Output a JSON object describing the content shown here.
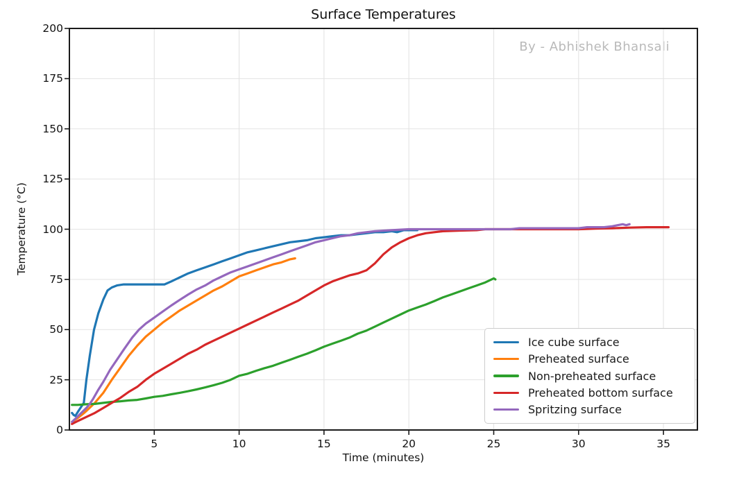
{
  "chart": {
    "title": "Surface Temperatures",
    "watermark": "By - Abhishek Bhansali",
    "xlabel": "Time (minutes)",
    "ylabel": "Temperature (°C)"
  },
  "chart_data": {
    "type": "line",
    "title": "Surface Temperatures",
    "xlabel": "Time (minutes)",
    "ylabel": "Temperature (°C)",
    "xlim": [
      0,
      37
    ],
    "ylim": [
      0,
      200
    ],
    "xticks": [
      5,
      10,
      15,
      20,
      25,
      30,
      35
    ],
    "yticks": [
      0,
      25,
      50,
      75,
      100,
      125,
      150,
      175,
      200
    ],
    "grid": true,
    "grid_color": "#e3e3e3",
    "spine_color": "#1a1a1a",
    "legend_position": "lower-right-inside",
    "annotations": [
      "By - Abhishek Bhansali"
    ],
    "series": [
      {
        "name": "Ice cube surface",
        "slug": "ice-cube-surface",
        "color": "#1f77b4",
        "points": [
          [
            0.15,
            8.5
          ],
          [
            0.25,
            7.5
          ],
          [
            0.35,
            7
          ],
          [
            0.5,
            9
          ],
          [
            0.65,
            11
          ],
          [
            0.85,
            13.5
          ],
          [
            1,
            25
          ],
          [
            1.2,
            37
          ],
          [
            1.45,
            50
          ],
          [
            1.7,
            58
          ],
          [
            2,
            65
          ],
          [
            2.25,
            69.5
          ],
          [
            2.5,
            71
          ],
          [
            2.8,
            72
          ],
          [
            3.2,
            72.5
          ],
          [
            4,
            72.5
          ],
          [
            4.5,
            72.5
          ],
          [
            5,
            72.5
          ],
          [
            5.6,
            72.5
          ],
          [
            6,
            74
          ],
          [
            6.5,
            76
          ],
          [
            7,
            78
          ],
          [
            7.5,
            79.5
          ],
          [
            8,
            81
          ],
          [
            8.5,
            82.5
          ],
          [
            9,
            84
          ],
          [
            9.5,
            85.5
          ],
          [
            10,
            87
          ],
          [
            10.5,
            88.5
          ],
          [
            11,
            89.5
          ],
          [
            11.5,
            90.5
          ],
          [
            12,
            91.5
          ],
          [
            12.5,
            92.5
          ],
          [
            13,
            93.5
          ],
          [
            13.5,
            94
          ],
          [
            14,
            94.5
          ],
          [
            14.5,
            95.5
          ],
          [
            15,
            96
          ],
          [
            15.5,
            96.5
          ],
          [
            16,
            97
          ],
          [
            16.5,
            97
          ],
          [
            17,
            97.5
          ],
          [
            17.5,
            98
          ],
          [
            18,
            98.5
          ],
          [
            18.5,
            98.5
          ],
          [
            19,
            99
          ],
          [
            19.3,
            98.5
          ],
          [
            19.7,
            99.5
          ],
          [
            20,
            99.5
          ],
          [
            20.5,
            99.5
          ]
        ]
      },
      {
        "name": "Preheated surface",
        "slug": "preheated-surface",
        "color": "#ff7f0e",
        "points": [
          [
            0.15,
            4
          ],
          [
            0.5,
            6
          ],
          [
            0.8,
            8
          ],
          [
            1,
            9.5
          ],
          [
            1.5,
            13.5
          ],
          [
            2,
            18.5
          ],
          [
            2.5,
            25
          ],
          [
            3,
            31
          ],
          [
            3.5,
            37
          ],
          [
            4,
            42
          ],
          [
            4.5,
            46.5
          ],
          [
            5,
            50
          ],
          [
            5.5,
            53.5
          ],
          [
            6,
            56.5
          ],
          [
            6.5,
            59.5
          ],
          [
            7,
            62
          ],
          [
            7.5,
            64.5
          ],
          [
            8,
            67
          ],
          [
            8.5,
            69.5
          ],
          [
            9,
            71.5
          ],
          [
            9.5,
            74
          ],
          [
            10,
            76.5
          ],
          [
            10.5,
            78
          ],
          [
            11,
            79.5
          ],
          [
            11.5,
            81
          ],
          [
            12,
            82.5
          ],
          [
            12.5,
            83.5
          ],
          [
            13,
            85
          ],
          [
            13.3,
            85.5
          ]
        ]
      },
      {
        "name": "Non-preheated surface",
        "slug": "non-preheated-surface",
        "color": "#2ca02c",
        "points": [
          [
            0.15,
            12.5
          ],
          [
            0.5,
            12.5
          ],
          [
            1,
            12.8
          ],
          [
            1.5,
            13
          ],
          [
            2,
            13.5
          ],
          [
            2.5,
            14
          ],
          [
            3,
            14.3
          ],
          [
            3.5,
            14.7
          ],
          [
            4,
            15
          ],
          [
            4.5,
            15.7
          ],
          [
            5,
            16.5
          ],
          [
            5.5,
            17
          ],
          [
            6,
            17.8
          ],
          [
            6.5,
            18.5
          ],
          [
            7,
            19.3
          ],
          [
            7.5,
            20.2
          ],
          [
            8,
            21.2
          ],
          [
            8.5,
            22.3
          ],
          [
            9,
            23.5
          ],
          [
            9.5,
            25
          ],
          [
            10,
            27
          ],
          [
            10.5,
            28
          ],
          [
            11,
            29.5
          ],
          [
            11.5,
            30.8
          ],
          [
            12,
            32
          ],
          [
            12.5,
            33.5
          ],
          [
            13,
            35
          ],
          [
            13.5,
            36.5
          ],
          [
            14,
            38
          ],
          [
            14.5,
            39.7
          ],
          [
            15,
            41.5
          ],
          [
            15.5,
            43
          ],
          [
            16,
            44.5
          ],
          [
            16.5,
            46
          ],
          [
            17,
            48
          ],
          [
            17.5,
            49.5
          ],
          [
            18,
            51.5
          ],
          [
            18.5,
            53.5
          ],
          [
            19,
            55.5
          ],
          [
            19.5,
            57.5
          ],
          [
            20,
            59.5
          ],
          [
            20.5,
            61
          ],
          [
            21,
            62.5
          ],
          [
            21.5,
            64.2
          ],
          [
            22,
            66
          ],
          [
            22.5,
            67.5
          ],
          [
            23,
            69
          ],
          [
            23.5,
            70.5
          ],
          [
            24,
            72
          ],
          [
            24.5,
            73.5
          ],
          [
            25,
            75.5
          ],
          [
            25.1,
            75
          ]
        ]
      },
      {
        "name": "Preheated bottom surface",
        "slug": "preheated-bottom-surface",
        "color": "#d62728",
        "points": [
          [
            0.15,
            3
          ],
          [
            0.5,
            4.5
          ],
          [
            1,
            6.5
          ],
          [
            1.5,
            8.5
          ],
          [
            2,
            11
          ],
          [
            2.5,
            13.5
          ],
          [
            3,
            16
          ],
          [
            3.5,
            19
          ],
          [
            4,
            21.5
          ],
          [
            4.5,
            25
          ],
          [
            5,
            28
          ],
          [
            5.5,
            30.5
          ],
          [
            6,
            33
          ],
          [
            6.5,
            35.5
          ],
          [
            7,
            38
          ],
          [
            7.5,
            40
          ],
          [
            8,
            42.5
          ],
          [
            8.5,
            44.5
          ],
          [
            9,
            46.5
          ],
          [
            9.5,
            48.5
          ],
          [
            10,
            50.5
          ],
          [
            10.5,
            52.5
          ],
          [
            11,
            54.5
          ],
          [
            11.5,
            56.5
          ],
          [
            12,
            58.5
          ],
          [
            12.5,
            60.5
          ],
          [
            13,
            62.5
          ],
          [
            13.5,
            64.5
          ],
          [
            14,
            67
          ],
          [
            14.5,
            69.5
          ],
          [
            15,
            72
          ],
          [
            15.5,
            74
          ],
          [
            16,
            75.5
          ],
          [
            16.5,
            77
          ],
          [
            17,
            78
          ],
          [
            17.5,
            79.5
          ],
          [
            18,
            83
          ],
          [
            18.5,
            87.5
          ],
          [
            19,
            91
          ],
          [
            19.5,
            93.5
          ],
          [
            20,
            95.5
          ],
          [
            20.5,
            97
          ],
          [
            21,
            98
          ],
          [
            21.5,
            98.5
          ],
          [
            22,
            99
          ],
          [
            23,
            99.3
          ],
          [
            24,
            99.5
          ],
          [
            24.5,
            100
          ],
          [
            25,
            100
          ],
          [
            26,
            100
          ],
          [
            27,
            100
          ],
          [
            28,
            100
          ],
          [
            29,
            100
          ],
          [
            30,
            100
          ],
          [
            31,
            100.3
          ],
          [
            32,
            100.5
          ],
          [
            33,
            100.8
          ],
          [
            34,
            101
          ],
          [
            35,
            101
          ],
          [
            35.3,
            101
          ]
        ]
      },
      {
        "name": "Spritzing surface",
        "slug": "spritzing-surface",
        "color": "#9467bd",
        "points": [
          [
            0.15,
            4
          ],
          [
            0.4,
            6
          ],
          [
            0.7,
            8.5
          ],
          [
            1,
            11
          ],
          [
            1.2,
            13
          ],
          [
            1.4,
            15.5
          ],
          [
            1.7,
            20
          ],
          [
            2,
            24
          ],
          [
            2.4,
            30
          ],
          [
            2.8,
            35
          ],
          [
            3.2,
            40
          ],
          [
            3.7,
            46
          ],
          [
            4.1,
            50
          ],
          [
            4.5,
            53
          ],
          [
            5,
            56
          ],
          [
            5.5,
            59
          ],
          [
            6,
            62
          ],
          [
            6.5,
            64.8
          ],
          [
            7,
            67.5
          ],
          [
            7.5,
            70
          ],
          [
            8,
            72
          ],
          [
            8.5,
            74.5
          ],
          [
            9,
            76.5
          ],
          [
            9.5,
            78.5
          ],
          [
            10,
            80
          ],
          [
            10.5,
            81.5
          ],
          [
            11,
            83
          ],
          [
            11.5,
            84.5
          ],
          [
            12,
            86
          ],
          [
            12.5,
            87.5
          ],
          [
            13,
            89
          ],
          [
            13.5,
            90.5
          ],
          [
            14,
            92
          ],
          [
            14.5,
            93.5
          ],
          [
            15,
            94.5
          ],
          [
            15.5,
            95.5
          ],
          [
            16,
            96.5
          ],
          [
            16.5,
            97
          ],
          [
            17,
            98
          ],
          [
            17.5,
            98.5
          ],
          [
            18,
            99
          ],
          [
            19,
            99.5
          ],
          [
            20,
            100
          ],
          [
            21,
            100
          ],
          [
            22,
            100
          ],
          [
            23,
            100
          ],
          [
            24,
            100
          ],
          [
            25,
            100
          ],
          [
            26,
            100
          ],
          [
            26.5,
            100.5
          ],
          [
            28,
            100.5
          ],
          [
            29,
            100.5
          ],
          [
            30,
            100.5
          ],
          [
            30.5,
            101
          ],
          [
            31.5,
            101
          ],
          [
            32,
            101.5
          ],
          [
            32.3,
            102
          ],
          [
            32.6,
            102.5
          ],
          [
            32.8,
            102
          ],
          [
            33,
            102.5
          ]
        ]
      }
    ]
  }
}
